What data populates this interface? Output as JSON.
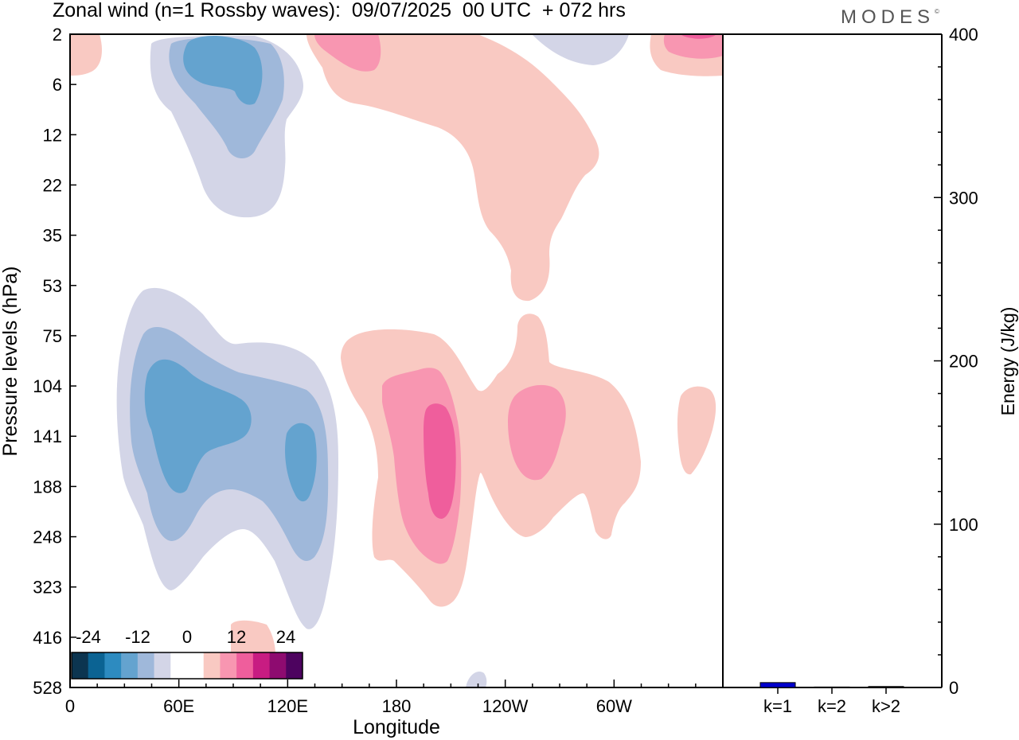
{
  "header": {
    "title": "Zonal wind (n=1 Rossby waves):  09/07/2025  00 UTC  + 072 hrs",
    "logo": "MODES",
    "logo_mark": "©"
  },
  "chart_data": [
    {
      "type": "heatmap",
      "title": "Zonal wind (n=1 Rossby waves):  09/07/2025  00 UTC  + 072 hrs",
      "xlabel": "Longitude",
      "ylabel": "Pressure levels (hPa)",
      "x_ticks": [
        "0",
        "60E",
        "120E",
        "180",
        "120W",
        "60W"
      ],
      "y_ticks": [
        "2",
        "6",
        "12",
        "22",
        "35",
        "53",
        "75",
        "104",
        "141",
        "188",
        "248",
        "323",
        "416",
        "528"
      ],
      "colorbar": {
        "labels": [
          "-24",
          "-12",
          "0",
          "12",
          "24"
        ],
        "levels": [
          -30,
          -26,
          -22,
          -18,
          -14,
          -10,
          -6,
          -2,
          2,
          6,
          10,
          14,
          18,
          22,
          26,
          30
        ],
        "colors": [
          "#0c3550",
          "#0b6393",
          "#2d8bc0",
          "#64a3cf",
          "#9fb8da",
          "#d3d5e7",
          "#ffffff",
          "#ffffff",
          "#f9c9c2",
          "#f896b1",
          "#ef5e9c",
          "#c81c82",
          "#8e0b70",
          "#4d035f"
        ]
      },
      "contours": [
        {
          "level": -6,
          "label": "upper blue envelope",
          "color": "#d3d5e7"
        },
        {
          "level": -10,
          "label": "upper blue middle",
          "color": "#9fb8da"
        },
        {
          "level": -14,
          "label": "upper blue core",
          "color": "#64a3cf"
        },
        {
          "level": 6,
          "label": "upper pink band",
          "color": "#f9c9c2"
        },
        {
          "level": 10,
          "label": "upper pink core",
          "color": "#f896b1"
        },
        {
          "level": -6,
          "label": "lower blue envelope",
          "color": "#d3d5e7"
        },
        {
          "level": -10,
          "label": "lower blue middle",
          "color": "#9fb8da"
        },
        {
          "level": -14,
          "label": "lower blue cores",
          "color": "#64a3cf"
        },
        {
          "level": 6,
          "label": "lower pink envelope",
          "color": "#f9c9c2"
        },
        {
          "level": 10,
          "label": "lower pink middle",
          "color": "#f896b1"
        },
        {
          "level": 14,
          "label": "lower pink core",
          "color": "#ef5e9c"
        }
      ]
    },
    {
      "type": "bar",
      "ylabel": "Energy (J/kg)",
      "categories": [
        "k=1",
        "k=2",
        "k>2"
      ],
      "values": [
        3,
        0.3,
        0.6
      ],
      "colors": [
        "#0000cc",
        "#000000",
        "#000000"
      ],
      "ylim": [
        0,
        400
      ],
      "y_ticks": [
        0,
        100,
        200,
        300,
        400
      ]
    }
  ]
}
